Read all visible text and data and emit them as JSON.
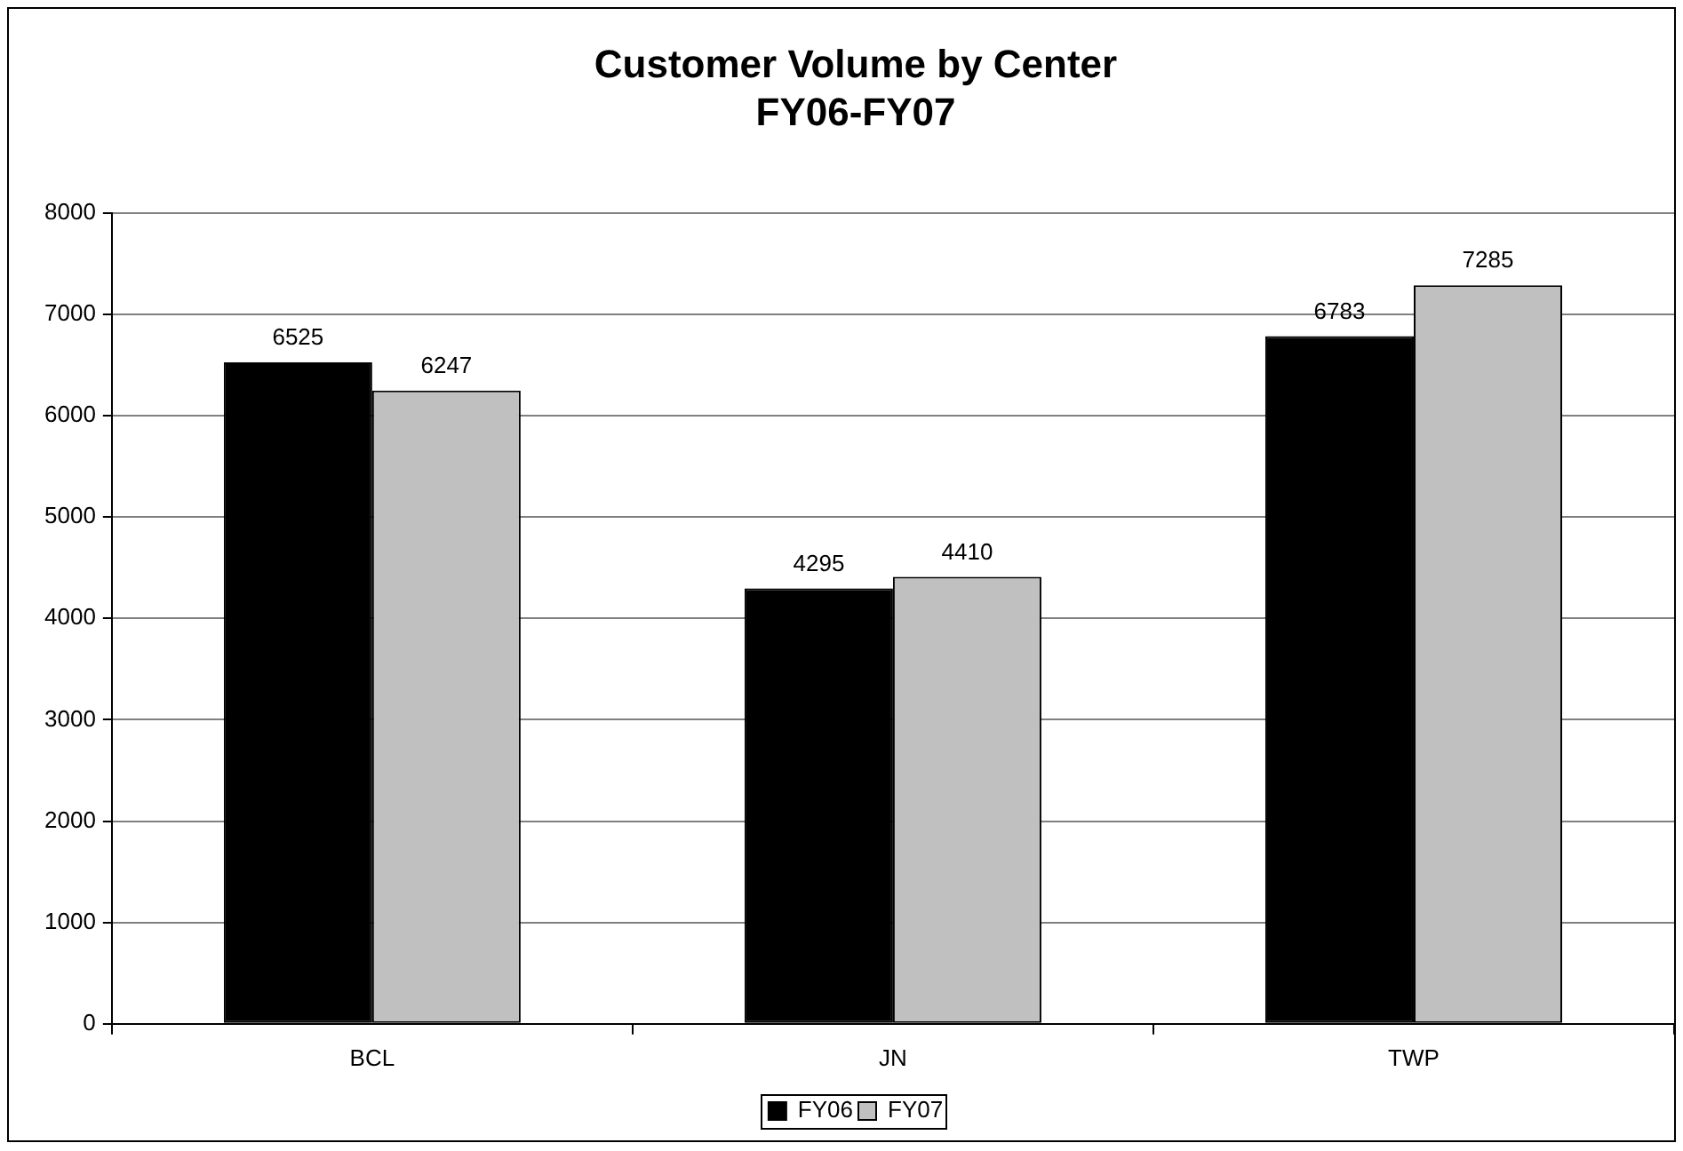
{
  "chart_data": {
    "type": "bar",
    "title": "Customer Volume by Center",
    "subtitle": "FY06-FY07",
    "categories": [
      "BCL",
      "JN",
      "TWP"
    ],
    "series": [
      {
        "name": "FY06",
        "color": "#000000",
        "values": [
          6525,
          4295,
          6783
        ]
      },
      {
        "name": "FY07",
        "color": "#c0c0c0",
        "values": [
          6247,
          4410,
          7285
        ]
      }
    ],
    "ylim": [
      0,
      8000
    ],
    "yticks": [
      0,
      1000,
      2000,
      3000,
      4000,
      5000,
      6000,
      7000,
      8000
    ],
    "grid": "y",
    "legend": "bottom",
    "data_labels": true
  }
}
